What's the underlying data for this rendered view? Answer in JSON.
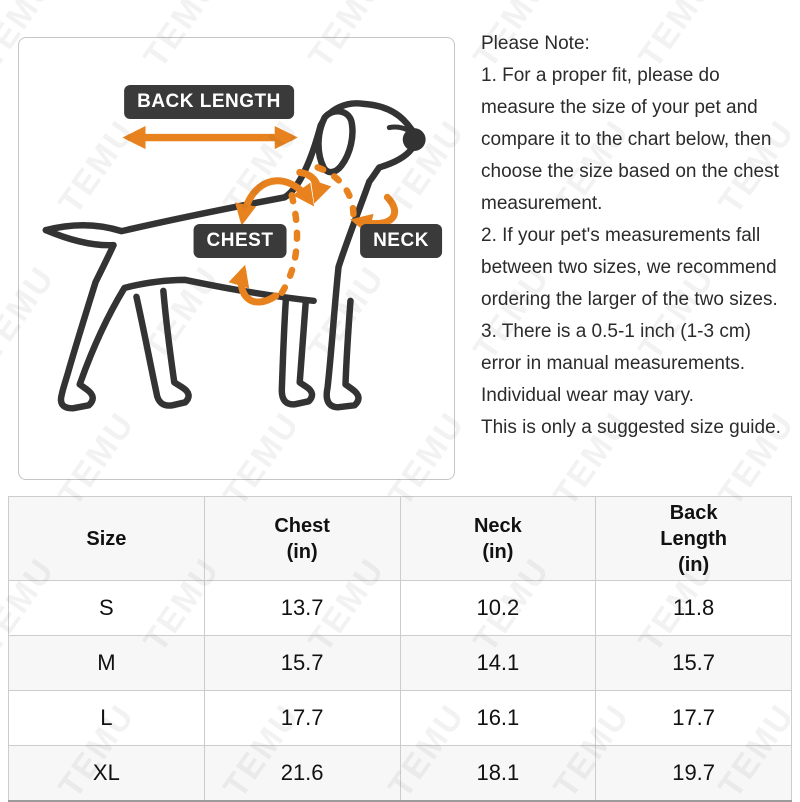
{
  "watermark": {
    "text": "TEMU"
  },
  "diagram": {
    "labels": {
      "back_length": "BACK LENGTH",
      "chest": "CHEST",
      "neck": "NECK"
    }
  },
  "note": {
    "title": "Please Note:",
    "items": [
      "1. For a proper fit, please do measure the size of your pet and compare it to the chart below, then choose the size based on the chest measurement.",
      "2. If your pet's measurements fall between two sizes, we recommend ordering the larger of the two sizes.",
      "3. There is a 0.5-1 inch (1-3 cm) error in manual measurements. Individual wear may vary.",
      "This is only a suggested size guide."
    ]
  },
  "size_table": {
    "headers": [
      "Size",
      "Chest\n(in)",
      "Neck\n(in)",
      "Back\nLength\n(in)"
    ],
    "rows": [
      {
        "size": "S",
        "chest": "13.7",
        "neck": "10.2",
        "back_length": "11.8"
      },
      {
        "size": "M",
        "chest": "15.7",
        "neck": "14.1",
        "back_length": "15.7"
      },
      {
        "size": "L",
        "chest": "17.7",
        "neck": "16.1",
        "back_length": "17.7"
      },
      {
        "size": "XL",
        "chest": "21.6",
        "neck": "18.1",
        "back_length": "19.7"
      }
    ]
  },
  "colors": {
    "accent_orange": "#E8821E",
    "line_dark": "#333333",
    "label_background": "#3A3A3A",
    "table_border": "#CCCCCC",
    "table_alt_row": "#F7F7F7",
    "watermark_gray": "#E9E9E9"
  }
}
